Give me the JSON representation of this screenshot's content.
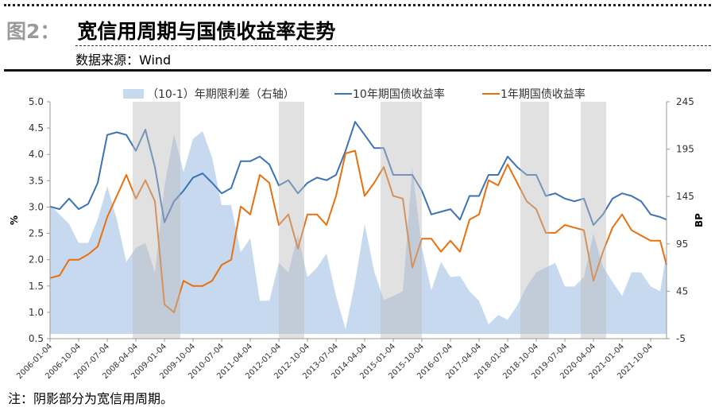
{
  "header": {
    "figure_label": "图2：",
    "title": "宽信用周期与国债收益率走势",
    "source": "数据来源：Wind"
  },
  "footer": {
    "note": "注：阴影部分为宽信用周期。"
  },
  "chart_data": {
    "type": "line",
    "title": "宽信用周期与国债收益率走势",
    "ylabel": "%",
    "y2label": "BP",
    "ylim": [
      0.5,
      5.0
    ],
    "y2lim": [
      -5,
      245
    ],
    "yticks": [
      "0.5",
      "1.0",
      "1.5",
      "2.0",
      "2.5",
      "3.0",
      "3.5",
      "4.0",
      "4.5",
      "5.0"
    ],
    "y2ticks": [
      "-5",
      "45",
      "95",
      "145",
      "195",
      "245"
    ],
    "xticks": [
      "2006-01-04",
      "2006-10-04",
      "2007-07-04",
      "2008-04-04",
      "2009-01-04",
      "2009-10-04",
      "2010-07-04",
      "2011-04-04",
      "2012-01-04",
      "2012-10-04",
      "2013-07-04",
      "2014-04-04",
      "2015-01-04",
      "2015-10-04",
      "2016-07-04",
      "2017-04-04",
      "2018-01-04",
      "2018-10-04",
      "2019-07-04",
      "2020-04-04",
      "2021-01-04",
      "2021-10-04"
    ],
    "x": [
      "2006-01",
      "2006-04",
      "2006-07",
      "2006-10",
      "2007-01",
      "2007-04",
      "2007-07",
      "2007-10",
      "2008-01",
      "2008-04",
      "2008-07",
      "2008-10",
      "2009-01",
      "2009-04",
      "2009-07",
      "2009-10",
      "2010-01",
      "2010-04",
      "2010-07",
      "2010-10",
      "2011-01",
      "2011-04",
      "2011-07",
      "2011-10",
      "2012-01",
      "2012-04",
      "2012-07",
      "2012-10",
      "2013-01",
      "2013-04",
      "2013-07",
      "2013-10",
      "2014-01",
      "2014-04",
      "2014-07",
      "2014-10",
      "2015-01",
      "2015-04",
      "2015-07",
      "2015-10",
      "2016-01",
      "2016-04",
      "2016-07",
      "2016-10",
      "2017-01",
      "2017-04",
      "2017-07",
      "2017-10",
      "2018-01",
      "2018-04",
      "2018-07",
      "2018-10",
      "2019-01",
      "2019-04",
      "2019-07",
      "2019-10",
      "2020-01",
      "2020-04",
      "2020-07",
      "2020-10",
      "2021-01",
      "2021-04",
      "2021-07",
      "2021-10",
      "2022-01",
      "2022-03"
    ],
    "legend": [
      "（10-1）年期限利差（右轴）",
      "10年期国债收益率",
      "1年期国债收益率"
    ],
    "legend_position": "top",
    "series": [
      {
        "name": "（10-1）年期限利差（右轴）",
        "axis": "right",
        "kind": "area",
        "color": "#c6d9ef",
        "values": [
          136,
          126,
          116,
          96,
          96,
          121,
          156,
          121,
          76,
          91,
          96,
          65,
          156,
          211,
          171,
          206,
          214,
          186,
          136,
          136,
          86,
          101,
          35,
          35,
          75,
          65,
          105,
          60,
          70,
          85,
          40,
          5,
          55,
          116,
          66,
          36,
          40,
          45,
          176,
          91,
          46,
          76,
          60,
          61,
          45,
          35,
          10,
          20,
          15,
          30,
          50,
          65,
          70,
          75,
          50,
          50,
          60,
          106,
          71,
          55,
          40,
          65,
          65,
          50,
          45,
          86
        ]
      },
      {
        "name": "10年期国债收益率",
        "axis": "left",
        "kind": "line",
        "color": "#3d72b4",
        "values": [
          3.01,
          2.96,
          3.16,
          2.96,
          3.06,
          3.46,
          4.37,
          4.42,
          4.37,
          4.07,
          4.47,
          3.76,
          2.71,
          3.11,
          3.31,
          3.56,
          3.64,
          3.46,
          3.26,
          3.36,
          3.87,
          3.87,
          3.96,
          3.81,
          3.41,
          3.51,
          3.26,
          3.46,
          3.56,
          3.51,
          3.61,
          4.07,
          4.62,
          4.37,
          4.12,
          4.12,
          3.61,
          3.61,
          3.61,
          3.31,
          2.86,
          2.91,
          2.96,
          2.76,
          3.21,
          3.21,
          3.61,
          3.61,
          3.96,
          3.76,
          3.61,
          3.61,
          3.21,
          3.26,
          3.16,
          3.11,
          3.16,
          2.66,
          2.86,
          3.16,
          3.26,
          3.21,
          3.11,
          2.86,
          2.81,
          2.76
        ]
      },
      {
        "name": "1年期国债收益率",
        "axis": "left",
        "kind": "line",
        "color": "#e8700f",
        "values": [
          1.65,
          1.7,
          2.0,
          2.0,
          2.1,
          2.25,
          2.81,
          3.21,
          3.61,
          3.16,
          3.51,
          3.11,
          1.15,
          1.0,
          1.6,
          1.5,
          1.5,
          1.6,
          1.9,
          2.0,
          3.01,
          2.86,
          3.61,
          3.46,
          2.66,
          2.86,
          2.21,
          2.86,
          2.86,
          2.66,
          3.21,
          4.02,
          4.07,
          3.21,
          3.46,
          3.76,
          3.21,
          3.16,
          1.85,
          2.4,
          2.4,
          2.15,
          2.36,
          2.15,
          2.76,
          2.86,
          3.51,
          3.41,
          3.81,
          3.46,
          3.11,
          2.96,
          2.51,
          2.51,
          2.66,
          2.61,
          2.56,
          1.6,
          2.15,
          2.61,
          2.86,
          2.56,
          2.46,
          2.36,
          2.36,
          1.9
        ]
      }
    ],
    "shaded_periods": [
      [
        "2008-03",
        "2009-06"
      ],
      [
        "2012-01",
        "2012-09"
      ],
      [
        "2014-09",
        "2015-10"
      ],
      [
        "2018-05",
        "2019-02"
      ],
      [
        "2019-12",
        "2020-08"
      ]
    ]
  }
}
